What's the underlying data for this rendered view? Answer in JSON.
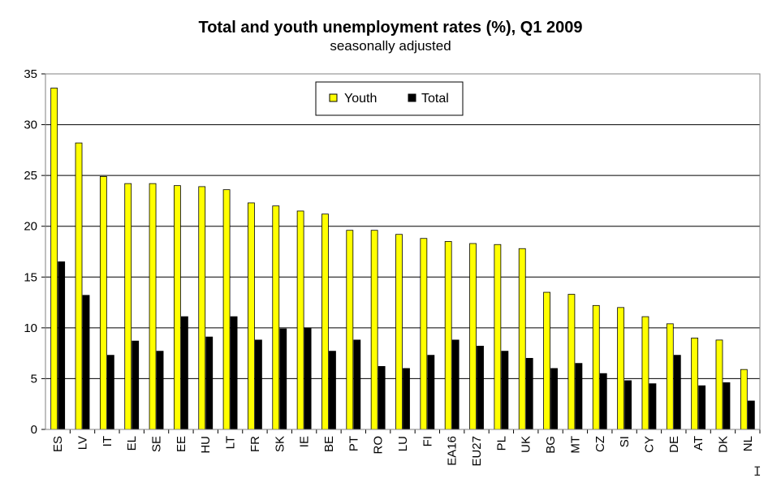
{
  "chart_data": {
    "type": "bar",
    "title": "Total and youth unemployment rates (%), Q1 2009",
    "subtitle": "seasonally adjusted",
    "categories": [
      "ES",
      "LV",
      "IT",
      "EL",
      "SE",
      "EE",
      "HU",
      "LT",
      "FR",
      "SK",
      "IE",
      "BE",
      "PT",
      "RO",
      "LU",
      "FI",
      "EA16",
      "EU27",
      "PL",
      "UK",
      "BG",
      "MT",
      "CZ",
      "SI",
      "CY",
      "DE",
      "AT",
      "DK",
      "NL"
    ],
    "series": [
      {
        "name": "Youth",
        "color": "#ffff00",
        "values": [
          33.6,
          28.2,
          24.9,
          24.2,
          24.2,
          24.0,
          23.9,
          23.6,
          22.3,
          22.0,
          21.5,
          21.2,
          19.6,
          19.6,
          19.2,
          18.8,
          18.5,
          18.3,
          18.2,
          17.8,
          13.5,
          13.3,
          12.2,
          12.0,
          11.1,
          10.4,
          9.0,
          8.8,
          5.9
        ]
      },
      {
        "name": "Total",
        "color": "#000000",
        "values": [
          16.5,
          13.2,
          7.3,
          8.7,
          7.7,
          11.1,
          9.1,
          11.1,
          8.8,
          9.9,
          10.0,
          7.7,
          8.8,
          6.2,
          6.0,
          7.3,
          8.8,
          8.2,
          7.7,
          7.0,
          6.0,
          6.5,
          5.5,
          4.8,
          4.5,
          7.3,
          4.3,
          4.6,
          2.8
        ]
      }
    ],
    "yticks": [
      0,
      5,
      10,
      15,
      20,
      25,
      30,
      35
    ],
    "ylim": [
      0,
      35
    ],
    "xlabel": "",
    "ylabel": "",
    "grid": true,
    "legend": "top-center"
  }
}
